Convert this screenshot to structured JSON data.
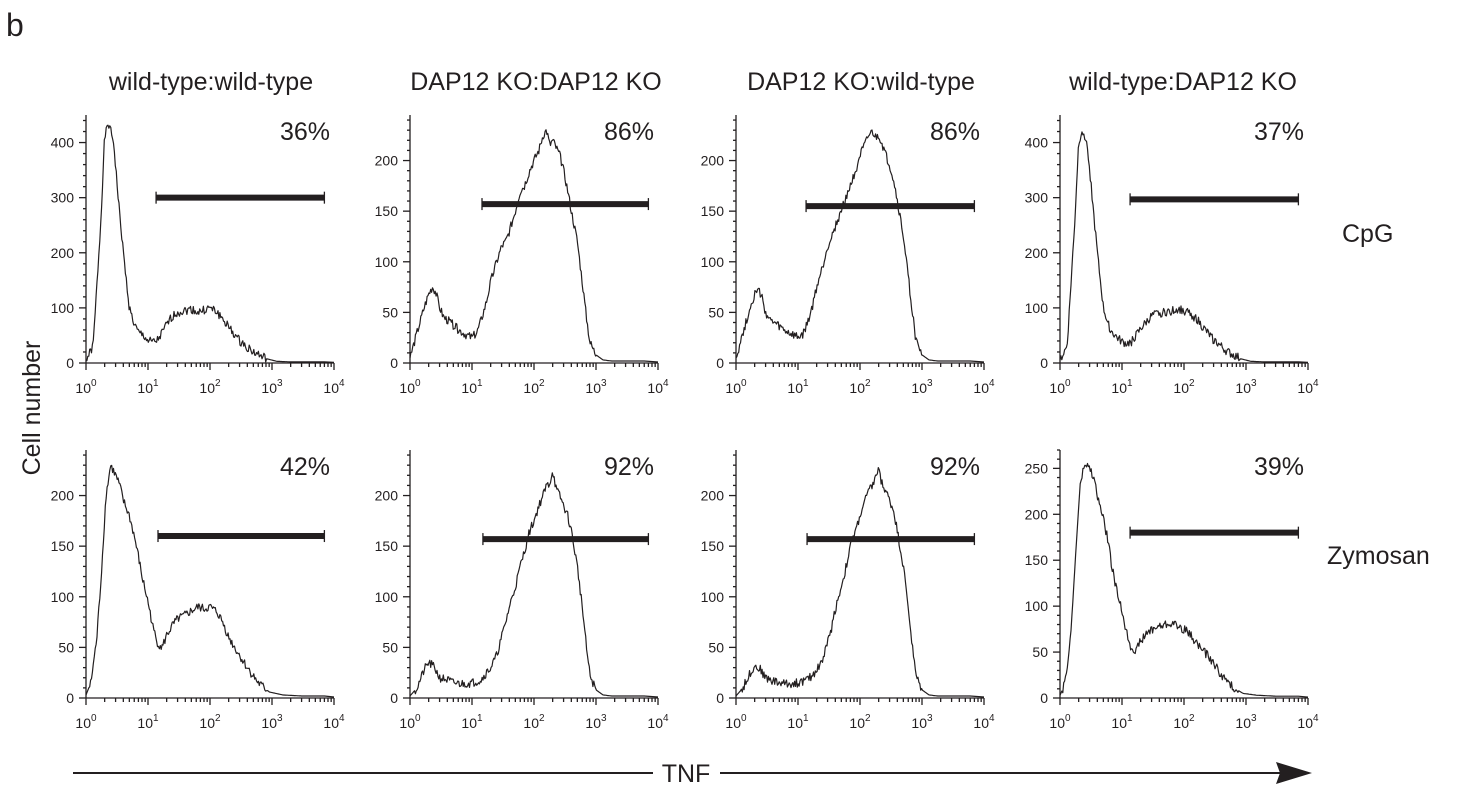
{
  "figure": {
    "panel_letter": "b",
    "y_axis_label": "Cell number",
    "x_axis_label": "TNF",
    "column_titles": [
      "wild-type:wild-type",
      "DAP12 KO:DAP12 KO",
      "DAP12 KO:wild-type",
      "wild-type:DAP12 KO"
    ],
    "row_labels": [
      "CpG",
      "Zymosan"
    ]
  },
  "chart_data": [
    {
      "type": "area",
      "row": 0,
      "col": 0,
      "title": "wild-type:wild-type",
      "stimulus": "CpG",
      "x_scale": "log",
      "xlim": [
        1,
        10000
      ],
      "x_ticks": [
        "10^0",
        "10^1",
        "10^2",
        "10^3",
        "10^4"
      ],
      "ylim": [
        0,
        450
      ],
      "y_ticks": [
        0,
        100,
        200,
        300,
        400
      ],
      "gate": {
        "x_range": [
          13.5,
          7000
        ],
        "y": 300,
        "percent": "36%"
      },
      "histogram": {
        "x": [
          1,
          1.3,
          1.7,
          2,
          2.3,
          2.8,
          3.3,
          4,
          5,
          6,
          7,
          8.5,
          10,
          12,
          14,
          17,
          20,
          25,
          30,
          40,
          50,
          65,
          80,
          100,
          130,
          160,
          200,
          300,
          500,
          800,
          1200,
          2000,
          4000,
          7000
        ],
        "y": [
          5,
          30,
          240,
          410,
          435,
          400,
          300,
          200,
          100,
          70,
          55,
          50,
          40,
          38,
          40,
          55,
          70,
          85,
          92,
          95,
          98,
          92,
          96,
          100,
          92,
          80,
          65,
          40,
          20,
          8,
          3,
          2,
          2,
          2
        ]
      }
    },
    {
      "type": "area",
      "row": 0,
      "col": 1,
      "title": "DAP12 KO:DAP12 KO",
      "stimulus": "CpG",
      "x_scale": "log",
      "xlim": [
        1,
        10000
      ],
      "x_ticks": [
        "10^0",
        "10^1",
        "10^2",
        "10^3",
        "10^4"
      ],
      "ylim": [
        0,
        245
      ],
      "y_ticks": [
        0,
        50,
        100,
        150,
        200
      ],
      "gate": {
        "x_range": [
          14.5,
          7000
        ],
        "y": 157,
        "percent": "86%"
      },
      "histogram": {
        "x": [
          1,
          1.3,
          1.7,
          2,
          2.3,
          2.6,
          3,
          3.5,
          4.5,
          6,
          8,
          10,
          12,
          14,
          17,
          20,
          25,
          30,
          35,
          40,
          50,
          60,
          70,
          85,
          100,
          120,
          140,
          160,
          180,
          200,
          230,
          260,
          300,
          350,
          400,
          500,
          600,
          700,
          800,
          1000,
          1300,
          1800,
          3000,
          6000
        ],
        "y": [
          5,
          30,
          55,
          68,
          75,
          70,
          55,
          45,
          40,
          33,
          28,
          25,
          30,
          42,
          60,
          80,
          100,
          115,
          120,
          130,
          150,
          170,
          175,
          190,
          200,
          210,
          225,
          230,
          215,
          220,
          212,
          205,
          190,
          170,
          150,
          120,
          80,
          45,
          20,
          8,
          3,
          2,
          2,
          2
        ]
      }
    },
    {
      "type": "area",
      "row": 0,
      "col": 2,
      "title": "DAP12 KO:wild-type",
      "stimulus": "CpG",
      "x_scale": "log",
      "xlim": [
        1,
        10000
      ],
      "x_ticks": [
        "10^0",
        "10^1",
        "10^2",
        "10^3",
        "10^4"
      ],
      "ylim": [
        0,
        245
      ],
      "y_ticks": [
        0,
        50,
        100,
        150,
        200
      ],
      "gate": {
        "x_range": [
          13.5,
          7000
        ],
        "y": 155,
        "percent": "86%"
      },
      "histogram": {
        "x": [
          1,
          1.3,
          1.7,
          2,
          2.3,
          2.6,
          3,
          3.5,
          4.5,
          6,
          8,
          10,
          12,
          14,
          17,
          20,
          25,
          30,
          35,
          40,
          50,
          60,
          70,
          85,
          100,
          120,
          140,
          160,
          180,
          200,
          230,
          260,
          300,
          350,
          400,
          500,
          600,
          700,
          800,
          1000,
          1300,
          1800,
          3000,
          6000
        ],
        "y": [
          5,
          30,
          55,
          68,
          72,
          65,
          50,
          42,
          38,
          32,
          28,
          25,
          28,
          38,
          55,
          75,
          95,
          115,
          125,
          135,
          150,
          165,
          175,
          190,
          205,
          215,
          225,
          228,
          222,
          225,
          215,
          205,
          195,
          180,
          160,
          125,
          85,
          50,
          22,
          8,
          3,
          2,
          2,
          2
        ]
      }
    },
    {
      "type": "area",
      "row": 0,
      "col": 3,
      "title": "wild-type:DAP12 KO",
      "stimulus": "CpG",
      "x_scale": "log",
      "xlim": [
        1,
        10000
      ],
      "x_ticks": [
        "10^0",
        "10^1",
        "10^2",
        "10^3",
        "10^4"
      ],
      "ylim": [
        0,
        450
      ],
      "y_ticks": [
        0,
        100,
        200,
        300,
        400
      ],
      "gate": {
        "x_range": [
          13.5,
          7000
        ],
        "y": 297,
        "percent": "37%"
      },
      "histogram": {
        "x": [
          1,
          1.3,
          1.7,
          2,
          2.3,
          2.8,
          3.3,
          4,
          5,
          6,
          7,
          8.5,
          10,
          12,
          14,
          17,
          20,
          25,
          30,
          40,
          50,
          65,
          80,
          100,
          130,
          160,
          200,
          300,
          500,
          800,
          1200,
          2000,
          4000,
          7000
        ],
        "y": [
          5,
          30,
          240,
          400,
          425,
          390,
          300,
          200,
          100,
          70,
          55,
          45,
          38,
          35,
          38,
          50,
          62,
          75,
          85,
          90,
          92,
          95,
          98,
          95,
          88,
          80,
          65,
          42,
          20,
          8,
          3,
          2,
          2,
          2
        ]
      }
    },
    {
      "type": "area",
      "row": 1,
      "col": 0,
      "title": "wild-type:wild-type",
      "stimulus": "Zymosan",
      "x_scale": "log",
      "xlim": [
        1,
        10000
      ],
      "x_ticks": [
        "10^0",
        "10^1",
        "10^2",
        "10^3",
        "10^4"
      ],
      "ylim": [
        0,
        245
      ],
      "y_ticks": [
        0,
        50,
        100,
        150,
        200
      ],
      "gate": {
        "x_range": [
          14.5,
          7000
        ],
        "y": 160,
        "percent": "42%"
      },
      "histogram": {
        "x": [
          1,
          1.2,
          1.5,
          1.8,
          2.1,
          2.5,
          3,
          3.5,
          4,
          5,
          6,
          7,
          8,
          10,
          12,
          14,
          17,
          20,
          25,
          30,
          40,
          50,
          65,
          80,
          100,
          130,
          160,
          200,
          250,
          300,
          400,
          600,
          900,
          1500,
          3000,
          7000
        ],
        "y": [
          3,
          15,
          60,
          130,
          200,
          230,
          220,
          210,
          195,
          180,
          160,
          140,
          120,
          95,
          70,
          55,
          50,
          62,
          72,
          78,
          82,
          86,
          90,
          88,
          90,
          85,
          75,
          60,
          50,
          42,
          30,
          15,
          6,
          3,
          2,
          2
        ]
      }
    },
    {
      "type": "area",
      "row": 1,
      "col": 1,
      "title": "DAP12 KO:DAP12 KO",
      "stimulus": "Zymosan",
      "x_scale": "log",
      "xlim": [
        1,
        10000
      ],
      "x_ticks": [
        "10^0",
        "10^1",
        "10^2",
        "10^3",
        "10^4"
      ],
      "ylim": [
        0,
        245
      ],
      "y_ticks": [
        0,
        50,
        100,
        150,
        200
      ],
      "gate": {
        "x_range": [
          15,
          7000
        ],
        "y": 157,
        "percent": "92%"
      },
      "histogram": {
        "x": [
          1,
          1.3,
          1.7,
          2,
          2.5,
          3,
          4,
          5,
          7,
          10,
          14,
          17,
          20,
          25,
          30,
          35,
          40,
          50,
          60,
          70,
          85,
          100,
          120,
          140,
          160,
          180,
          200,
          230,
          260,
          300,
          350,
          400,
          500,
          600,
          700,
          800,
          1000,
          1300,
          1800,
          3000,
          6000
        ],
        "y": [
          2,
          10,
          28,
          35,
          30,
          20,
          18,
          15,
          14,
          15,
          18,
          25,
          30,
          42,
          60,
          75,
          90,
          110,
          130,
          145,
          165,
          175,
          190,
          200,
          210,
          212,
          225,
          205,
          200,
          190,
          180,
          165,
          130,
          90,
          50,
          22,
          8,
          3,
          2,
          2,
          2
        ]
      }
    },
    {
      "type": "area",
      "row": 1,
      "col": 2,
      "title": "DAP12 KO:wild-type",
      "stimulus": "Zymosan",
      "x_scale": "log",
      "xlim": [
        1,
        10000
      ],
      "x_ticks": [
        "10^0",
        "10^1",
        "10^2",
        "10^3",
        "10^4"
      ],
      "ylim": [
        0,
        245
      ],
      "y_ticks": [
        0,
        50,
        100,
        150,
        200
      ],
      "gate": {
        "x_range": [
          14,
          7000
        ],
        "y": 157,
        "percent": "92%"
      },
      "histogram": {
        "x": [
          1,
          1.3,
          1.7,
          2,
          2.5,
          3,
          4,
          5,
          7,
          10,
          14,
          17,
          20,
          25,
          30,
          35,
          40,
          50,
          60,
          70,
          85,
          100,
          120,
          140,
          160,
          180,
          200,
          230,
          260,
          300,
          350,
          400,
          500,
          600,
          700,
          800,
          1000,
          1300,
          1800,
          3000,
          6000
        ],
        "y": [
          2,
          10,
          25,
          32,
          28,
          20,
          17,
          15,
          14,
          15,
          18,
          22,
          28,
          38,
          55,
          70,
          88,
          110,
          130,
          150,
          165,
          180,
          195,
          205,
          210,
          220,
          225,
          210,
          205,
          195,
          185,
          165,
          130,
          90,
          50,
          22,
          8,
          3,
          2,
          2,
          2
        ]
      }
    },
    {
      "type": "area",
      "row": 1,
      "col": 3,
      "title": "wild-type:DAP12 KO",
      "stimulus": "Zymosan",
      "x_scale": "log",
      "xlim": [
        1,
        10000
      ],
      "x_ticks": [
        "10^0",
        "10^1",
        "10^2",
        "10^3",
        "10^4"
      ],
      "ylim": [
        0,
        270
      ],
      "y_ticks": [
        0,
        50,
        100,
        150,
        200,
        250
      ],
      "gate": {
        "x_range": [
          13.5,
          7000
        ],
        "y": 180,
        "percent": "39%"
      },
      "histogram": {
        "x": [
          1,
          1.2,
          1.5,
          1.8,
          2.1,
          2.5,
          3,
          3.5,
          4,
          5,
          6,
          7,
          8,
          10,
          12,
          14,
          17,
          20,
          25,
          30,
          40,
          50,
          65,
          80,
          100,
          130,
          160,
          200,
          250,
          300,
          400,
          600,
          900,
          1500,
          3000,
          7000
        ],
        "y": [
          3,
          15,
          70,
          160,
          230,
          255,
          250,
          240,
          220,
          195,
          170,
          140,
          120,
          95,
          70,
          55,
          52,
          62,
          70,
          75,
          78,
          80,
          82,
          78,
          75,
          68,
          60,
          52,
          45,
          38,
          25,
          12,
          5,
          3,
          2,
          2
        ]
      }
    }
  ]
}
